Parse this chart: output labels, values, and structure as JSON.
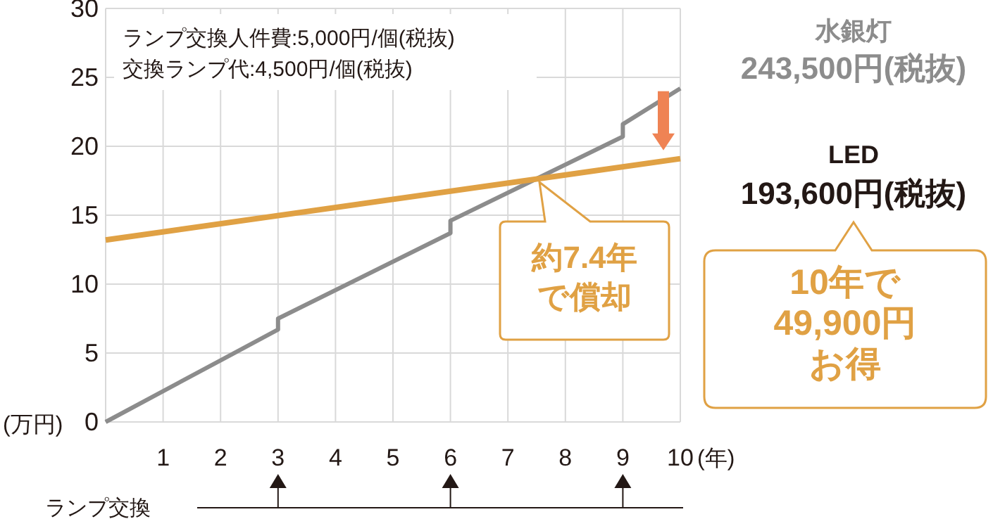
{
  "chart_data": {
    "type": "line",
    "xlabel": "(年)",
    "ylabel": "(万円)",
    "xlim": [
      0,
      10
    ],
    "xticks": [
      {
        "value": 0,
        "label": null
      },
      1,
      2,
      3,
      4,
      5,
      6,
      7,
      8,
      9,
      10
    ],
    "ylim": [
      0,
      30
    ],
    "yticks": [
      0,
      5,
      10,
      15,
      20,
      25,
      30
    ],
    "grid": true,
    "series": [
      {
        "name": "水銀灯",
        "color": "#8c8c8c",
        "x": [
          0,
          3,
          3,
          6,
          6,
          9,
          9,
          10
        ],
        "values": [
          0,
          6.7,
          7.5,
          13.7,
          14.6,
          20.7,
          21.6,
          24.2
        ]
      },
      {
        "name": "LED",
        "color": "#e0a144",
        "x": [
          0,
          10
        ],
        "values": [
          13.2,
          19.1
        ]
      }
    ],
    "annotations": [
      "ランプ交換人件費:5,000円/個(税抜)",
      "交換ランプ代:4,500円/個(税抜)",
      "243,500円(税抜)",
      "193,600円(税抜)",
      "10年で",
      "49,900円",
      "お得",
      {
        "text": "約7.4年",
        "x": 7.5,
        "y": 17.6
      },
      "で償却",
      "ランプ交換"
    ]
  }
}
